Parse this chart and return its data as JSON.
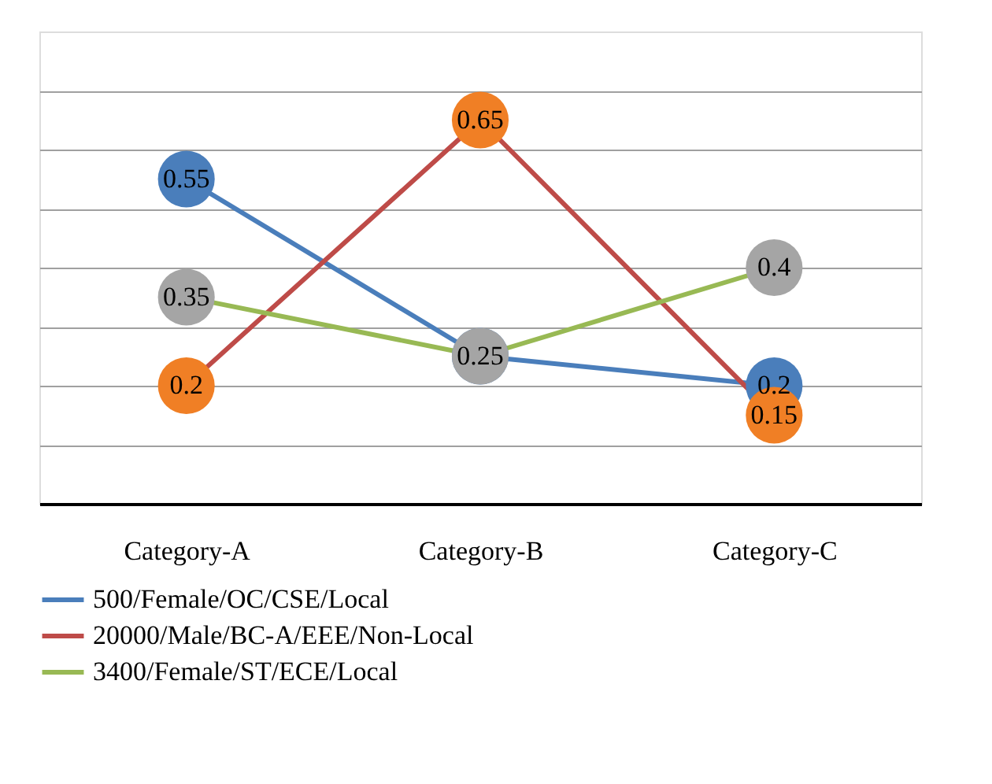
{
  "chart_data": {
    "type": "line",
    "categories": [
      "Category-A",
      "Category-B",
      "Category-C"
    ],
    "series": [
      {
        "name": "500/Female/OC/CSE/Local",
        "color": "#4a7ebb",
        "colors": [
          "#4a7ebb",
          "#4a7ebb",
          "#4a7ebb"
        ],
        "values": [
          0.55,
          0.25,
          0.2
        ],
        "value_labels": [
          "0.55",
          null,
          "0.2"
        ]
      },
      {
        "name": "20000/Male/BC-A/EEE/Non-Local",
        "color": "#be4b48",
        "colors": [
          "#f07f25",
          "#f07f25",
          "#f07f25"
        ],
        "values": [
          0.2,
          0.65,
          0.15
        ],
        "value_labels": [
          "0.2",
          "0.65",
          "0.15"
        ]
      },
      {
        "name": "3400/Female/ST/ECE/Local",
        "color": "#98b954",
        "colors": [
          "#a5a5a5",
          "#a5a5a5",
          "#a5a5a5"
        ],
        "values": [
          0.35,
          0.25,
          0.4
        ],
        "value_labels": [
          "0.35",
          "0.25",
          "0.4"
        ]
      }
    ],
    "ylim": [
      0,
      0.8
    ],
    "yticks": [
      {
        "value": 0.1,
        "label": null
      },
      {
        "value": 0.2,
        "label": null
      },
      {
        "value": 0.3,
        "label": null
      },
      {
        "value": 0.4,
        "label": null
      },
      {
        "value": 0.5,
        "label": null
      },
      {
        "value": 0.6,
        "label": null
      },
      {
        "value": 0.7,
        "label": null
      }
    ],
    "tick_labels": "x",
    "grid": "y",
    "legend": "bottom",
    "marker": "circle",
    "line_style": "solid"
  }
}
